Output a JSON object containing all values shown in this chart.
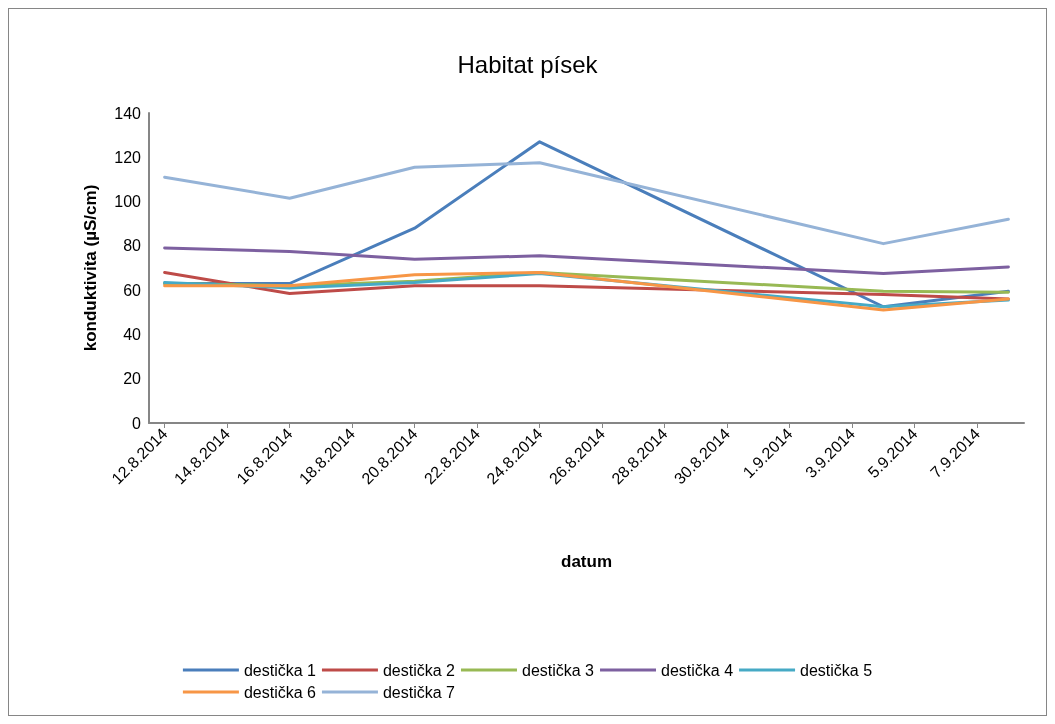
{
  "chart_data": {
    "type": "line",
    "title": "Habitat písek",
    "xlabel": "datum",
    "ylabel": "konduktivita (µS/cm)",
    "x": [
      "2014-08-12",
      "2014-08-16",
      "2014-08-20",
      "2014-08-24",
      "2014-09-04",
      "2014-09-08"
    ],
    "xlim": [
      "2014-08-11T12:00",
      "2014-09-08T12:00"
    ],
    "xticks": [
      {
        "value": "2014-08-12",
        "label": "12.8.2014"
      },
      {
        "value": "2014-08-14",
        "label": "14.8.2014"
      },
      {
        "value": "2014-08-16",
        "label": "16.8.2014"
      },
      {
        "value": "2014-08-18",
        "label": "18.8.2014"
      },
      {
        "value": "2014-08-20",
        "label": "20.8.2014"
      },
      {
        "value": "2014-08-22",
        "label": "22.8.2014"
      },
      {
        "value": "2014-08-24",
        "label": "24.8.2014"
      },
      {
        "value": "2014-08-26",
        "label": "26.8.2014"
      },
      {
        "value": "2014-08-28",
        "label": "28.8.2014"
      },
      {
        "value": "2014-08-30",
        "label": "30.8.2014"
      },
      {
        "value": "2014-09-01",
        "label": "1.9.2014"
      },
      {
        "value": "2014-09-03",
        "label": "3.9.2014"
      },
      {
        "value": "2014-09-05",
        "label": "5.9.2014"
      },
      {
        "value": "2014-09-07",
        "label": "7.9.2014"
      }
    ],
    "ylim": [
      0,
      140
    ],
    "yticks": [
      0,
      20,
      40,
      60,
      80,
      100,
      120,
      140
    ],
    "grid": false,
    "legend": "bottom",
    "marker": "none",
    "line_style": "solid",
    "series": [
      {
        "name": "destička 1",
        "color": "#4a7ebb",
        "values": [
          63,
          63,
          88,
          127,
          52.5,
          59.5
        ]
      },
      {
        "name": "destička 2",
        "color": "#be4b48",
        "values": [
          68,
          58.5,
          62,
          62,
          58,
          56
        ]
      },
      {
        "name": "destička 3",
        "color": "#98b954",
        "values": [
          63,
          62,
          64,
          68,
          59.5,
          59
        ]
      },
      {
        "name": "destička 4",
        "color": "#7d60a0",
        "values": [
          79,
          77.5,
          74,
          75.5,
          67.5,
          70.5
        ]
      },
      {
        "name": "destička 5",
        "color": "#46aac5",
        "values": [
          63.5,
          61,
          63.5,
          67.5,
          52.5,
          55.5
        ]
      },
      {
        "name": "destička 6",
        "color": "#f79646",
        "values": [
          62,
          62,
          67,
          68,
          51,
          56
        ]
      },
      {
        "name": "destička 7",
        "color": "#95b3d7",
        "values": [
          111,
          101.5,
          115.5,
          117.5,
          81,
          92
        ]
      }
    ]
  }
}
